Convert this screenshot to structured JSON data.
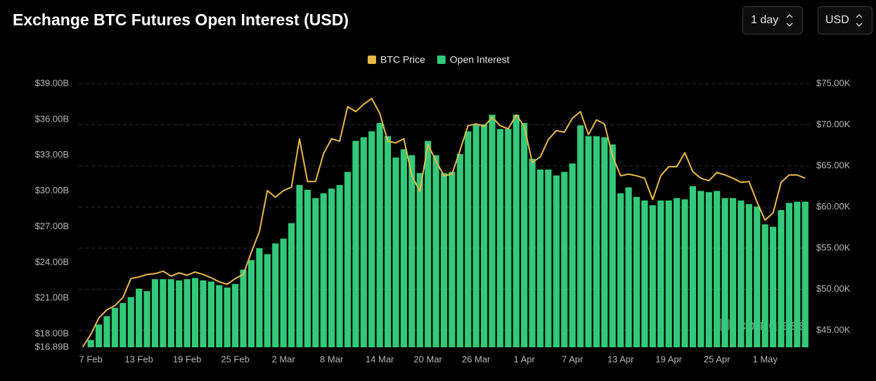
{
  "header": {
    "title": "Exchange BTC Futures Open Interest (USD)"
  },
  "controls": {
    "interval": "1 day",
    "currency": "USD"
  },
  "watermark": "coinglass",
  "chart_data": {
    "type": "combo",
    "categories": [
      null,
      "7 Feb",
      null,
      null,
      null,
      null,
      null,
      "13 Feb",
      null,
      null,
      null,
      null,
      null,
      "19 Feb",
      null,
      null,
      null,
      null,
      null,
      "25 Feb",
      null,
      null,
      null,
      null,
      null,
      "2 Mar",
      null,
      null,
      null,
      null,
      null,
      "8 Mar",
      null,
      null,
      null,
      null,
      null,
      "14 Mar",
      null,
      null,
      null,
      null,
      null,
      "20 Mar",
      null,
      null,
      null,
      null,
      null,
      "26 Mar",
      null,
      null,
      null,
      null,
      null,
      "1 Apr",
      null,
      null,
      null,
      null,
      null,
      "7 Apr",
      null,
      null,
      null,
      null,
      null,
      "13 Apr",
      null,
      null,
      null,
      null,
      null,
      "19 Apr",
      null,
      null,
      null,
      null,
      null,
      "25 Apr",
      null,
      null,
      null,
      null,
      null,
      "1 May",
      null,
      null,
      null,
      null,
      null
    ],
    "series": [
      {
        "name": "BTC Price",
        "type": "line",
        "axis": "y2",
        "color": "#e9b949",
        "values": [
          43000,
          44500,
          46500,
          47500,
          48000,
          49000,
          51300,
          51500,
          51800,
          51900,
          52200,
          51600,
          52000,
          51700,
          52100,
          51800,
          51400,
          50900,
          50600,
          51300,
          51800,
          54500,
          57000,
          62000,
          61200,
          62000,
          62400,
          68300,
          63100,
          63100,
          66500,
          68300,
          68000,
          72200,
          71600,
          72500,
          73200,
          71400,
          68000,
          67800,
          68300,
          63800,
          61900,
          67600,
          65600,
          63800,
          64000,
          66900,
          69900,
          70100,
          69800,
          70900,
          69900,
          69500,
          71200,
          69800,
          65400,
          66100,
          68200,
          69300,
          69100,
          70800,
          71600,
          68800,
          70600,
          70100,
          66200,
          63800,
          64000,
          63800,
          63500,
          60900,
          63800,
          64900,
          64900,
          66600,
          64300,
          63500,
          63200,
          64200,
          63900,
          63500,
          63000,
          63100,
          60600,
          58400,
          59300,
          63000,
          63900,
          63900,
          63500
        ]
      },
      {
        "name": "Open Interest",
        "type": "bar",
        "color": "#33c97a",
        "values": [
          16.9,
          17.5,
          18.8,
          19.5,
          20.2,
          20.6,
          21.1,
          21.8,
          21.6,
          22.6,
          22.6,
          22.6,
          22.5,
          22.6,
          22.7,
          22.5,
          22.4,
          22.1,
          21.9,
          22.2,
          23.4,
          24.2,
          25.2,
          24.7,
          25.6,
          26.0,
          27.3,
          30.5,
          30.1,
          29.4,
          29.8,
          30.2,
          30.5,
          31.6,
          34.2,
          34.5,
          35.0,
          35.7,
          34.6,
          32.8,
          33.5,
          33.0,
          31.5,
          34.2,
          33.0,
          31.5,
          31.6,
          33.1,
          35.0,
          35.6,
          35.6,
          36.4,
          35.2,
          35.2,
          36.4,
          35.7,
          32.7,
          31.8,
          31.8,
          31.3,
          31.6,
          32.3,
          35.5,
          34.6,
          34.6,
          34.5,
          33.9,
          29.8,
          30.3,
          29.5,
          29.2,
          28.8,
          29.2,
          29.2,
          29.4,
          29.3,
          30.4,
          30.0,
          29.9,
          30.0,
          29.4,
          29.4,
          29.2,
          28.9,
          28.7,
          27.2,
          27.0,
          28.4,
          29.0,
          29.1,
          29.1
        ]
      }
    ],
    "ylim": [
      16.89,
      39
    ],
    "yticks": [
      {
        "value": 16.89,
        "label": "$16.89B"
      },
      {
        "value": 18,
        "label": "$18.00B"
      },
      {
        "value": 21,
        "label": "$21.00B"
      },
      {
        "value": 24,
        "label": "$24.00B"
      },
      {
        "value": 27,
        "label": "$27.00B"
      },
      {
        "value": 30,
        "label": "$30.00B"
      },
      {
        "value": 33,
        "label": "$33.00B"
      },
      {
        "value": 36,
        "label": "$36.00B"
      },
      {
        "value": 39,
        "label": "$39.00B"
      }
    ],
    "y2lim": [
      42950,
      75000
    ],
    "y2ticks": [
      {
        "value": 45000,
        "label": "$45.00K"
      },
      {
        "value": 50000,
        "label": "$50.00K"
      },
      {
        "value": 55000,
        "label": "$55.00K"
      },
      {
        "value": 60000,
        "label": "$60.00K"
      },
      {
        "value": 65000,
        "label": "$65.00K"
      },
      {
        "value": 70000,
        "label": "$70.00K"
      },
      {
        "value": 75000,
        "label": "$75.00K"
      }
    ],
    "grid": "y2",
    "legend": "top"
  }
}
